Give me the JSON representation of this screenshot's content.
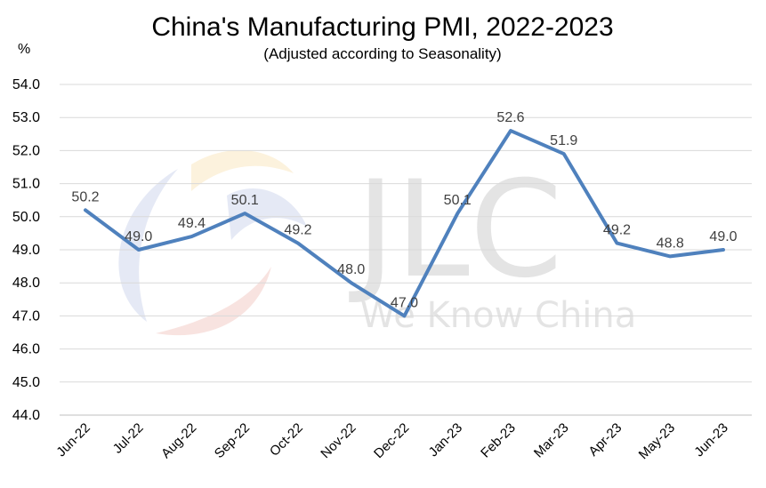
{
  "chart_data": {
    "type": "line",
    "title": "China's Manufacturing PMI, 2022-2023",
    "subtitle": "(Adjusted according to Seasonality)",
    "unit": "%",
    "xlabel": "",
    "ylabel": "",
    "categories": [
      "Jun-22",
      "Jul-22",
      "Aug-22",
      "Sep-22",
      "Oct-22",
      "Nov-22",
      "Dec-22",
      "Jan-23",
      "Feb-23",
      "Mar-23",
      "Apr-23",
      "May-23",
      "Jun-23"
    ],
    "series": [
      {
        "values": [
          50.2,
          49.0,
          49.4,
          50.1,
          49.2,
          48.0,
          47.0,
          50.1,
          52.6,
          51.9,
          49.2,
          48.8,
          49.0
        ]
      }
    ],
    "data_labels": [
      "50.2",
      "49.0",
      "49.4",
      "50.1",
      "49.2",
      "48.0",
      "47.0",
      "50.1",
      "52.6",
      "51.9",
      "49.2",
      "48.8",
      "49.0"
    ],
    "ylim": [
      44.0,
      54.0
    ],
    "yticks": [
      "44.0",
      "45.0",
      "46.0",
      "47.0",
      "48.0",
      "49.0",
      "50.0",
      "51.0",
      "52.0",
      "53.0",
      "54.0"
    ],
    "grid": true,
    "legend": "none",
    "line_color": "#4f81bd",
    "watermark": {
      "logo": "JLC",
      "tagline": "We Know China"
    }
  }
}
